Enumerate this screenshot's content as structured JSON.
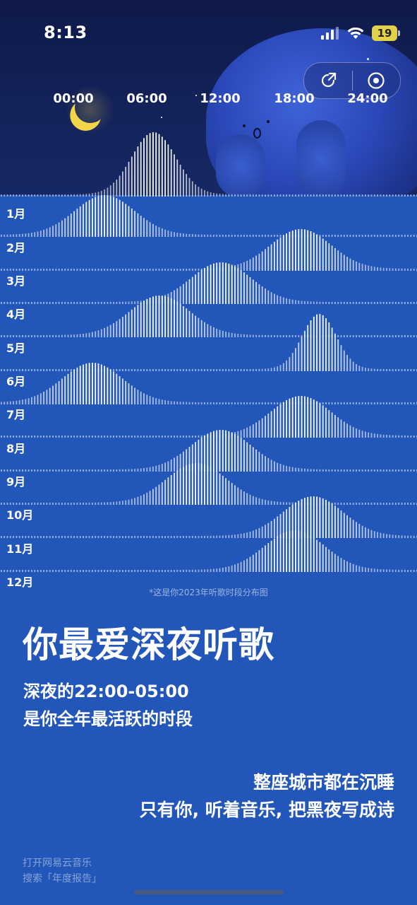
{
  "status_bar": {
    "time": "8:13",
    "battery": "19",
    "battery_color": "#e3d04a"
  },
  "header": {
    "share_icon": "share-icon",
    "record_icon": "record-icon",
    "hours": [
      "00:00",
      "06:00",
      "12:00",
      "18:00",
      "24:00"
    ]
  },
  "chart_data": {
    "type": "area",
    "x": [
      "00:00",
      "06:00",
      "12:00",
      "18:00",
      "24:00"
    ],
    "series": [
      {
        "name": "1月",
        "peak_hour": 2.5
      },
      {
        "name": "2月",
        "peak_hour": 18.5
      },
      {
        "name": "3月",
        "peak_hour": 12.0
      },
      {
        "name": "4月",
        "peak_hour": 7.0
      },
      {
        "name": "5月",
        "peak_hour": 20.0
      },
      {
        "name": "6月",
        "peak_hour": 1.5
      },
      {
        "name": "7月",
        "peak_hour": 18.5
      },
      {
        "name": "8月",
        "peak_hour": 12.0
      },
      {
        "name": "9月",
        "peak_hour": 10.0
      },
      {
        "name": "10月",
        "peak_hour": 19.5
      },
      {
        "name": "11月",
        "peak_hour": 18.0
      },
      {
        "name": "12月",
        "peak_hour": null
      }
    ],
    "top_peak_hour": 6.5,
    "footnote": "*这是你2023年听歌时段分布图"
  },
  "months": [
    "1月",
    "2月",
    "3月",
    "4月",
    "5月",
    "6月",
    "7月",
    "8月",
    "9月",
    "10月",
    "11月",
    "12月"
  ],
  "main": {
    "headline": "你最爱深夜听歌",
    "sub_line1": "深夜的22:00-05:00",
    "sub_line2": "是你全年最活跃的时段",
    "poem_line1": "整座城市都在沉睡",
    "poem_line2": "只有你, 听着音乐, 把黑夜写成诗"
  },
  "footer": {
    "hint_line1": "打开网易云音乐",
    "hint_line2": "搜索「年度报告」"
  },
  "colors": {
    "background": "#2256b8",
    "night_sky": "#0f1a4a",
    "moon": "#f2d64a",
    "bar": "#ffffff"
  }
}
